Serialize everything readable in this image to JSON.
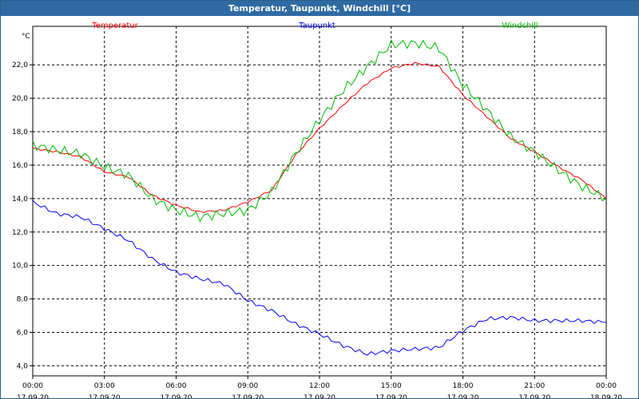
{
  "window": {
    "title": "Temperatur, Taupunkt, Windchill [°C]"
  },
  "chart_data": {
    "type": "line",
    "title": "Temperatur, Taupunkt, Windchill [°C]",
    "y_unit": "°C",
    "ylim": [
      3.4,
      24.3
    ],
    "xlim_hours": [
      0,
      24
    ],
    "grid": true,
    "legend_placement": "top",
    "y_ticks": [
      "4,0",
      "6,0",
      "8,0",
      "10,0",
      "12,0",
      "14,0",
      "16,0",
      "18,0",
      "20,0",
      "22,0"
    ],
    "x_ticks": [
      {
        "time": "00:00",
        "date": "17.09.20"
      },
      {
        "time": "03:00",
        "date": "17.09.20"
      },
      {
        "time": "06:00",
        "date": "17.09.20"
      },
      {
        "time": "09:00",
        "date": "17.09.20"
      },
      {
        "time": "12:00",
        "date": "17.09.20"
      },
      {
        "time": "15:00",
        "date": "17.09.20"
      },
      {
        "time": "18:00",
        "date": "17.09.20"
      },
      {
        "time": "21:00",
        "date": "17.09.20"
      },
      {
        "time": "00:00",
        "date": "18.09.20"
      }
    ],
    "x_hours": [
      0,
      1,
      2,
      3,
      4,
      5,
      6,
      7,
      8,
      9,
      10,
      11,
      12,
      13,
      14,
      15,
      16,
      17,
      18,
      19,
      20,
      21,
      22,
      23,
      24
    ],
    "series": [
      {
        "name": "Temperatur",
        "color": "#ff0000",
        "values": [
          17.0,
          16.8,
          16.5,
          15.6,
          15.3,
          14.2,
          13.6,
          13.2,
          13.3,
          13.8,
          14.5,
          16.6,
          18.2,
          19.6,
          20.9,
          21.8,
          22.1,
          21.9,
          20.2,
          18.9,
          17.6,
          16.8,
          15.9,
          15.1,
          14.0
        ]
      },
      {
        "name": "Taupunkt",
        "color": "#0000ff",
        "values": [
          13.8,
          13.1,
          12.9,
          12.2,
          11.5,
          10.4,
          9.6,
          9.2,
          8.9,
          7.9,
          7.3,
          6.5,
          5.9,
          5.2,
          4.7,
          4.9,
          5.0,
          5.1,
          6.1,
          6.8,
          6.9,
          6.7,
          6.7,
          6.7,
          6.6
        ]
      },
      {
        "name": "Windchill",
        "color": "#00bb00",
        "values": [
          17.2,
          16.9,
          16.7,
          15.9,
          15.4,
          14.0,
          13.3,
          12.9,
          13.1,
          13.3,
          14.4,
          16.7,
          18.7,
          20.5,
          21.9,
          23.2,
          23.3,
          23.0,
          20.8,
          19.3,
          17.7,
          16.8,
          15.7,
          14.7,
          14.0
        ]
      }
    ]
  }
}
